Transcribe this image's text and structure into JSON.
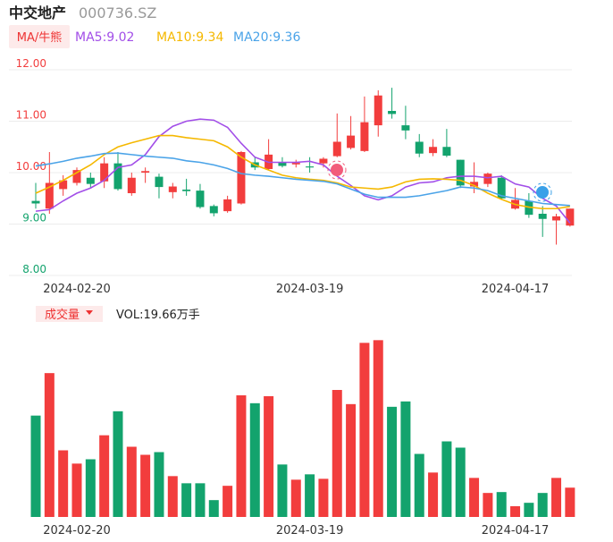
{
  "header": {
    "name": "中交地产",
    "code": "000736.SZ",
    "ma_button": "MA/牛熊"
  },
  "chart_data": [
    {
      "type": "candlestick",
      "categories": [
        null,
        null,
        null,
        "2024-02-20",
        null,
        null,
        null,
        null,
        null,
        null,
        null,
        null,
        null,
        null,
        null,
        null,
        null,
        null,
        null,
        null,
        "2024-03-19",
        null,
        null,
        null,
        null,
        null,
        null,
        null,
        null,
        null,
        null,
        null,
        null,
        null,
        null,
        "2024-04-17",
        null,
        null,
        null,
        null
      ],
      "open": [
        9.45,
        9.3,
        9.68,
        9.8,
        9.9,
        9.83,
        10.18,
        9.6,
        10.0,
        9.92,
        9.62,
        9.67,
        9.65,
        9.35,
        9.25,
        9.4,
        10.2,
        10.07,
        10.2,
        10.16,
        10.12,
        10.18,
        10.32,
        10.48,
        10.42,
        10.92,
        11.2,
        10.92,
        10.6,
        10.38,
        10.5,
        10.25,
        9.73,
        9.78,
        9.9,
        9.3,
        9.45,
        9.2,
        9.07,
        8.97
      ],
      "high": [
        9.8,
        10.4,
        9.95,
        10.1,
        10.0,
        10.3,
        10.4,
        10.0,
        10.1,
        9.98,
        9.8,
        9.88,
        9.78,
        9.38,
        9.55,
        10.42,
        10.3,
        10.65,
        10.3,
        10.25,
        10.3,
        10.3,
        11.15,
        11.1,
        11.48,
        11.6,
        11.65,
        11.3,
        10.75,
        10.65,
        10.85,
        10.25,
        10.2,
        10.0,
        9.95,
        9.7,
        9.6,
        9.35,
        9.2,
        9.3
      ],
      "low": [
        9.3,
        9.2,
        9.55,
        9.75,
        9.7,
        9.7,
        9.65,
        9.55,
        9.8,
        9.5,
        9.5,
        9.55,
        9.3,
        9.15,
        9.22,
        9.38,
        10.05,
        10.05,
        10.1,
        10.1,
        10.0,
        10.1,
        10.3,
        10.45,
        10.4,
        10.7,
        11.05,
        10.65,
        10.3,
        10.32,
        10.3,
        9.7,
        9.6,
        9.72,
        9.48,
        9.28,
        9.12,
        8.75,
        8.6,
        8.95
      ],
      "close": [
        9.4,
        9.8,
        9.85,
        10.05,
        9.78,
        10.18,
        9.68,
        9.9,
        10.03,
        9.72,
        9.73,
        9.64,
        9.33,
        9.21,
        9.48,
        10.4,
        10.1,
        10.35,
        10.13,
        10.19,
        10.1,
        10.27,
        10.6,
        10.72,
        10.98,
        11.5,
        11.14,
        10.82,
        10.37,
        10.5,
        10.33,
        9.75,
        9.82,
        9.98,
        9.5,
        9.47,
        9.18,
        9.1,
        9.15,
        9.3
      ],
      "up_color": "#f23d3d",
      "down_color": "#13a36d",
      "series": [
        {
          "name": "MA5:9.02",
          "color": "#a24ee8",
          "values": [
            9.25,
            9.28,
            9.45,
            9.6,
            9.7,
            9.85,
            10.1,
            10.15,
            10.35,
            10.7,
            10.9,
            11.0,
            11.04,
            11.02,
            10.88,
            10.57,
            10.3,
            10.2,
            10.2,
            10.2,
            10.22,
            10.15,
            9.93,
            9.75,
            9.55,
            9.47,
            9.55,
            9.72,
            9.8,
            9.82,
            9.9,
            9.93,
            9.93,
            9.9,
            9.93,
            9.78,
            9.72,
            9.5,
            9.35,
            9.02
          ]
        },
        {
          "name": "MA10:9.34",
          "color": "#f5b800",
          "values": [
            9.6,
            9.72,
            9.85,
            10.0,
            10.15,
            10.35,
            10.5,
            10.58,
            10.65,
            10.72,
            10.72,
            10.68,
            10.65,
            10.62,
            10.5,
            10.3,
            10.15,
            10.05,
            9.95,
            9.9,
            9.87,
            9.85,
            9.8,
            9.72,
            9.7,
            9.68,
            9.72,
            9.82,
            9.87,
            9.88,
            9.87,
            9.85,
            9.75,
            9.6,
            9.48,
            9.38,
            9.33,
            9.3,
            9.3,
            9.34
          ]
        },
        {
          "name": "MA20:9.36",
          "color": "#4aa3e8",
          "values": [
            10.13,
            10.17,
            10.22,
            10.28,
            10.32,
            10.37,
            10.38,
            10.35,
            10.32,
            10.3,
            10.28,
            10.23,
            10.2,
            10.15,
            10.08,
            9.98,
            9.95,
            9.93,
            9.9,
            9.87,
            9.85,
            9.83,
            9.78,
            9.68,
            9.58,
            9.52,
            9.52,
            9.52,
            9.55,
            9.6,
            9.65,
            9.72,
            9.7,
            9.65,
            9.55,
            9.5,
            9.45,
            9.4,
            9.38,
            9.36
          ]
        }
      ],
      "ylim": [
        8,
        12
      ],
      "yticks": [
        {
          "value": 12,
          "label": "12.00"
        },
        {
          "value": 11,
          "label": "11.00"
        },
        {
          "value": 10,
          "label": "10.00"
        },
        {
          "value": 9,
          "label": "9.00"
        },
        {
          "value": 8,
          "label": "8.00"
        }
      ],
      "ytick_colors": [
        "#f23d3d",
        "#f23d3d",
        "#f23d3d",
        "#13a36d",
        "#13a36d"
      ],
      "grid": true
    },
    {
      "type": "bar",
      "label": "成交量",
      "value_label": "VOL:19.66万手",
      "values": [
        68,
        96.5,
        44.7,
        35.8,
        38.7,
        54.8,
        70.9,
        47.1,
        41.7,
        43.5,
        27.4,
        22.6,
        22.6,
        11.3,
        20.9,
        81.6,
        76.3,
        81,
        35.2,
        25,
        28.6,
        25.6,
        85.2,
        75.7,
        116.8,
        118.6,
        73.9,
        77.5,
        42.3,
        29.8,
        50.7,
        46.5,
        26.2,
        16.1,
        16.7,
        7.2,
        9.5,
        16.1,
        26.2,
        19.66
      ],
      "ylim": [
        0,
        120
      ]
    }
  ]
}
